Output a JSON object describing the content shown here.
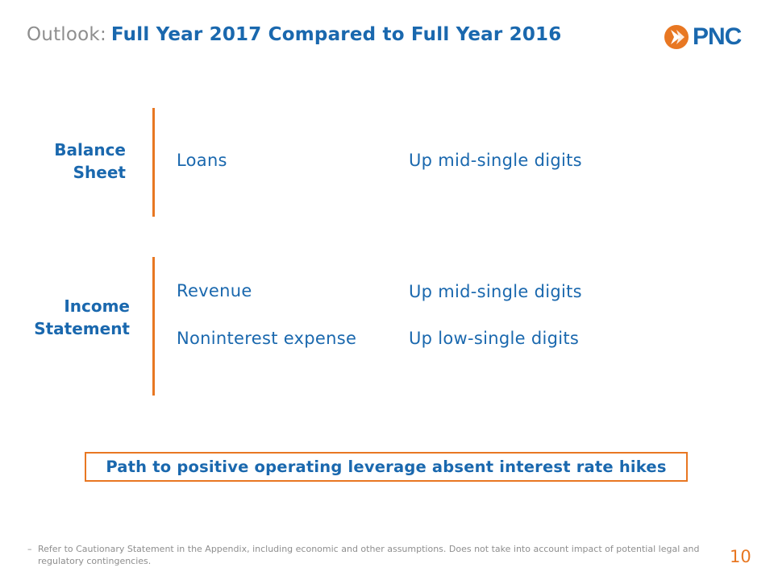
{
  "header": {
    "title_prefix": "Outlook:",
    "title_main": "Full Year 2017 Compared to Full Year 2016",
    "logo_text": "PNC"
  },
  "sections": [
    {
      "label_lines": [
        "Balance",
        "Sheet"
      ],
      "rows": [
        {
          "item": "Loans",
          "value": "Up mid-single digits"
        }
      ]
    },
    {
      "label_lines": [
        "Income",
        "Statement"
      ],
      "rows": [
        {
          "item": "Revenue",
          "value": "Up mid-single digits"
        },
        {
          "item": "Noninterest expense",
          "value": "Up low-single digits"
        }
      ]
    }
  ],
  "callout": "Path to positive operating leverage absent interest rate hikes",
  "footnote": {
    "bullet": "–",
    "text": "Refer to Cautionary Statement in the Appendix, including economic and other assumptions.  Does not take into account impact of potential legal and regulatory contingencies."
  },
  "page_number": "10",
  "colors": {
    "brand_blue": "#1a68ae",
    "accent_orange": "#e87722",
    "gray": "#8e8e8e"
  }
}
